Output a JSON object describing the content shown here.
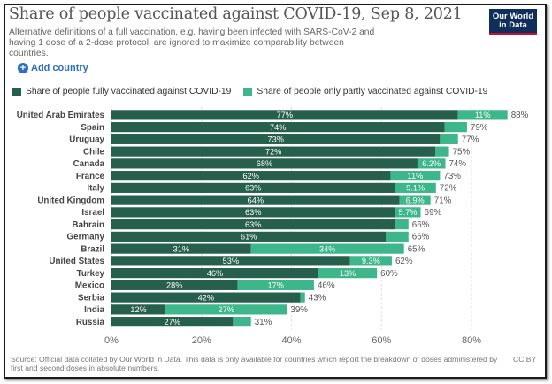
{
  "header": {
    "title": "Share of people vaccinated against COVID-19, Sep 8, 2021",
    "subtitle": "Alternative definitions of a full vaccination, e.g. having been infected with SARS-CoV-2 and having 1 dose of a 2-dose protocol, are ignored to maximize comparability between countries.",
    "logo_line1": "Our World",
    "logo_line2": "in Data"
  },
  "controls": {
    "add_country_label": "Add country",
    "add_icon": "plus-circle-icon"
  },
  "footer": {
    "source": "Source: Official data collated by Our World in Data. This data is only available for countries which report the breakdown of doses administered by first and second doses in absolute numbers.",
    "license": "CC BY"
  },
  "colors": {
    "fully": "#26604c",
    "partly": "#3cb68a",
    "grid": "#dddddd",
    "axis_text": "#666666"
  },
  "chart_data": {
    "type": "bar",
    "orientation": "horizontal",
    "stacked": true,
    "categories": [
      "United Arab Emirates",
      "Spain",
      "Uruguay",
      "Chile",
      "Canada",
      "France",
      "Italy",
      "United Kingdom",
      "Israel",
      "Bahrain",
      "Germany",
      "Brazil",
      "United States",
      "Turkey",
      "Mexico",
      "Serbia",
      "India",
      "Russia"
    ],
    "series": [
      {
        "name": "Share of people fully vaccinated against COVID-19",
        "values": [
          77,
          74,
          73,
          72,
          68,
          62,
          63,
          64,
          63,
          63,
          61,
          31,
          53,
          46,
          28,
          42,
          12,
          27
        ],
        "labels": [
          "77%",
          "74%",
          "73%",
          "72%",
          "68%",
          "62%",
          "63%",
          "64%",
          "63%",
          "63%",
          "61%",
          "31%",
          "53%",
          "46%",
          "28%",
          "42%",
          "12%",
          "27%"
        ]
      },
      {
        "name": "Share of people only partly vaccinated against COVID-19",
        "values": [
          11,
          5,
          4,
          3,
          6.2,
          11,
          9.1,
          6.9,
          5.7,
          3,
          5,
          34,
          9.3,
          13,
          17,
          1,
          27,
          4
        ],
        "labels": [
          "11%",
          "",
          "",
          "",
          "6.2%",
          "11%",
          "9.1%",
          "6.9%",
          "5.7%",
          "",
          "",
          "34%",
          "9.3%",
          "13%",
          "17%",
          "",
          "27%",
          ""
        ]
      }
    ],
    "totals": [
      "88%",
      "79%",
      "77%",
      "75%",
      "74%",
      "73%",
      "72%",
      "71%",
      "69%",
      "66%",
      "66%",
      "65%",
      "62%",
      "60%",
      "46%",
      "43%",
      "39%",
      "31%"
    ],
    "xlim": [
      0,
      90
    ],
    "xticks": [
      0,
      20,
      40,
      60,
      80
    ],
    "xtick_labels": [
      "0%",
      "20%",
      "40%",
      "60%",
      "80%"
    ],
    "grid": true,
    "legend_position": "top"
  }
}
